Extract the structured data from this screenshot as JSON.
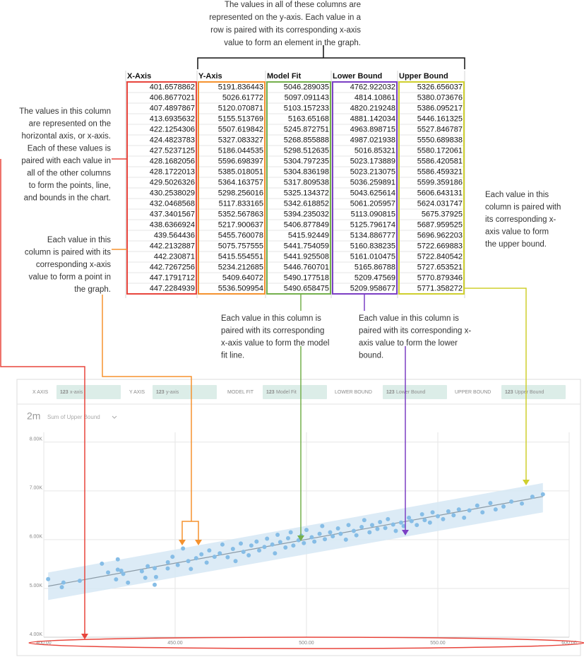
{
  "annotations": {
    "top": {
      "lines": [
        "The values in all of these columns are",
        "represented on the y-axis. Each value in a",
        "row is paired with its corresponding x-axis",
        "value to form an element in the graph."
      ]
    },
    "x_column": {
      "lines": [
        "The values in this column",
        "are represented on the",
        "horizontal axis, or x-axis.",
        "Each of these values is",
        "paired with each value in",
        "all of the other columns",
        "to form the points, line,",
        "and bounds in the chart."
      ]
    },
    "y_column": {
      "lines": [
        "Each value in this",
        "column is paired with its",
        "corresponding x-axis",
        "value to form a point in",
        "the graph."
      ]
    },
    "model_fit": {
      "lines": [
        "Each value in this column is",
        "paired with its corresponding",
        "x-axis value to form the model",
        "fit line."
      ]
    },
    "lower_bound": {
      "lines": [
        "Each value in this column is",
        "paired with its corresponding x-",
        "axis value to form the lower",
        "bound."
      ]
    },
    "upper_bound": {
      "lines": [
        "Each value in this",
        "column is paired with",
        "its corresponding x-",
        "axis value to form",
        "the upper bound."
      ]
    }
  },
  "table": {
    "headers": [
      "X-Axis",
      "Y-Axis",
      "Model Fit",
      "Lower Bound",
      "Upper Bound"
    ],
    "rows": [
      [
        "401.6578862",
        "5191.836443",
        "5046.289035",
        "4762.922032",
        "5326.656037"
      ],
      [
        "406.8677021",
        "5026.61772",
        "5097.091143",
        "4814.10861",
        "5380.073676"
      ],
      [
        "407.4897867",
        "5120.070871",
        "5103.157233",
        "4820.219248",
        "5386.095217"
      ],
      [
        "413.6935632",
        "5155.513769",
        "5163.65168",
        "4881.142034",
        "5446.161325"
      ],
      [
        "422.1254306",
        "5507.619842",
        "5245.872751",
        "4963.898715",
        "5527.846787"
      ],
      [
        "424.4823783",
        "5327.083327",
        "5268.855888",
        "4987.021938",
        "5550.689838"
      ],
      [
        "427.5237125",
        "5186.044535",
        "5298.512635",
        "5016.85321",
        "5580.172061"
      ],
      [
        "428.1682056",
        "5596.698397",
        "5304.797235",
        "5023.173889",
        "5586.420581"
      ],
      [
        "428.1722013",
        "5385.018051",
        "5304.836198",
        "5023.213075",
        "5586.459321"
      ],
      [
        "429.5026326",
        "5364.163757",
        "5317.809538",
        "5036.259891",
        "5599.359186"
      ],
      [
        "430.2538029",
        "5298.256016",
        "5325.134372",
        "5043.625614",
        "5606.643131"
      ],
      [
        "432.0468568",
        "5117.833165",
        "5342.618852",
        "5061.205957",
        "5624.031747"
      ],
      [
        "437.3401567",
        "5352.567863",
        "5394.235032",
        "5113.090815",
        "5675.37925"
      ],
      [
        "438.6366924",
        "5217.900637",
        "5406.877849",
        "5125.796174",
        "5687.959525"
      ],
      [
        "439.564436",
        "5455.760078",
        "5415.92449",
        "5134.886777",
        "5696.962203"
      ],
      [
        "442.2132887",
        "5075.757555",
        "5441.754059",
        "5160.838235",
        "5722.669883"
      ],
      [
        "442.230871",
        "5415.554551",
        "5441.925508",
        "5161.010475",
        "5722.840542"
      ],
      [
        "442.7267256",
        "5234.212685",
        "5446.760701",
        "5165.86788",
        "5727.653521"
      ],
      [
        "447.1791712",
        "5409.64072",
        "5490.177518",
        "5209.47569",
        "5770.879346"
      ],
      [
        "447.2284939",
        "5536.509954",
        "5490.658475",
        "5209.958677",
        "5771.358272"
      ]
    ]
  },
  "field_well": [
    {
      "label": "X AXIS",
      "icon": "123",
      "field": "x-axis"
    },
    {
      "label": "Y AXIS",
      "icon": "123",
      "field": "y-axis"
    },
    {
      "label": "MODEL FIT",
      "icon": "123",
      "field": "Model Fit"
    },
    {
      "label": "LOWER BOUND",
      "icon": "123",
      "field": "Lower Bound"
    },
    {
      "label": "UPPER BOUND",
      "icon": "123",
      "field": "Upper Bound"
    }
  ],
  "chart_data": {
    "type": "scatter",
    "title": "2m",
    "subtitle": "Sum of Upper Bound",
    "xlim": [
      400,
      600
    ],
    "xticks": [
      {
        "value": 400,
        "label": "400.00"
      },
      {
        "value": 450,
        "label": "450.00"
      },
      {
        "value": 500,
        "label": "500.00"
      },
      {
        "value": 550,
        "label": "550.00"
      },
      {
        "value": 600,
        "label": "600.00"
      }
    ],
    "ylim": [
      4000,
      8200
    ],
    "yticks": [
      {
        "value": 4000,
        "label": "4.00K"
      },
      {
        "value": 5000,
        "label": "5.00K"
      },
      {
        "value": 6000,
        "label": "6.00K"
      },
      {
        "value": 7000,
        "label": "7.00K"
      },
      {
        "value": 8000,
        "label": "8.00K"
      }
    ],
    "grid": true,
    "series": [
      {
        "type": "band",
        "color": "#d6e8f5",
        "x": [
          401.66,
          590
        ],
        "lower": [
          4763,
          6560
        ],
        "upper": [
          5327,
          7160
        ]
      },
      {
        "type": "line",
        "color": "#8a9aa6",
        "x": [
          401.66,
          590
        ],
        "values": [
          5046,
          6885
        ]
      },
      {
        "type": "scatter",
        "color": "#86bde6",
        "x": [
          401.66,
          406.87,
          407.49,
          413.69,
          422.13,
          424.48,
          427.52,
          428.17,
          428.17,
          429.5,
          430.25,
          432.05,
          437.34,
          438.64,
          439.56,
          442.21,
          442.23,
          442.73,
          447.18,
          447.23,
          449,
          451,
          453,
          455,
          456,
          458,
          460,
          462,
          463,
          465,
          467,
          468,
          470,
          472,
          473,
          475,
          476,
          478,
          479,
          481,
          482,
          484,
          485,
          487,
          488,
          489,
          490,
          492,
          493,
          494,
          495,
          497,
          498,
          499,
          500,
          502,
          503,
          505,
          506,
          507,
          509,
          510,
          512,
          513,
          515,
          516,
          518,
          519,
          521,
          522,
          524,
          525,
          527,
          528,
          530,
          531,
          533,
          534,
          536,
          537,
          539,
          540,
          542,
          544,
          545,
          547,
          548,
          550,
          552,
          554,
          556,
          558,
          560,
          562,
          565,
          567,
          570,
          572,
          575,
          578,
          582,
          586,
          590
        ],
        "values": [
          5192,
          5027,
          5120,
          5156,
          5508,
          5327,
          5186,
          5597,
          5385,
          5364,
          5298,
          5118,
          5353,
          5218,
          5456,
          5076,
          5416,
          5234,
          5410,
          5537,
          5650,
          5480,
          5820,
          5560,
          5400,
          5620,
          5700,
          5530,
          5780,
          5650,
          5720,
          5900,
          5640,
          5810,
          5560,
          5920,
          5750,
          5680,
          5880,
          5960,
          5780,
          5850,
          6020,
          5900,
          5720,
          6100,
          5950,
          5840,
          6030,
          6150,
          5880,
          5990,
          6080,
          5930,
          6200,
          6050,
          5960,
          6120,
          6280,
          6010,
          6150,
          6070,
          6230,
          6120,
          6000,
          6300,
          6180,
          6090,
          6260,
          6400,
          6150,
          6300,
          6220,
          6360,
          6240,
          6420,
          6310,
          6180,
          6350,
          6280,
          6450,
          6380,
          6300,
          6520,
          6400,
          6350,
          6560,
          6480,
          6420,
          6580,
          6500,
          6620,
          6450,
          6600,
          6700,
          6560,
          6750,
          6620,
          6680,
          6780,
          6740,
          6880,
          6930
        ]
      }
    ]
  }
}
